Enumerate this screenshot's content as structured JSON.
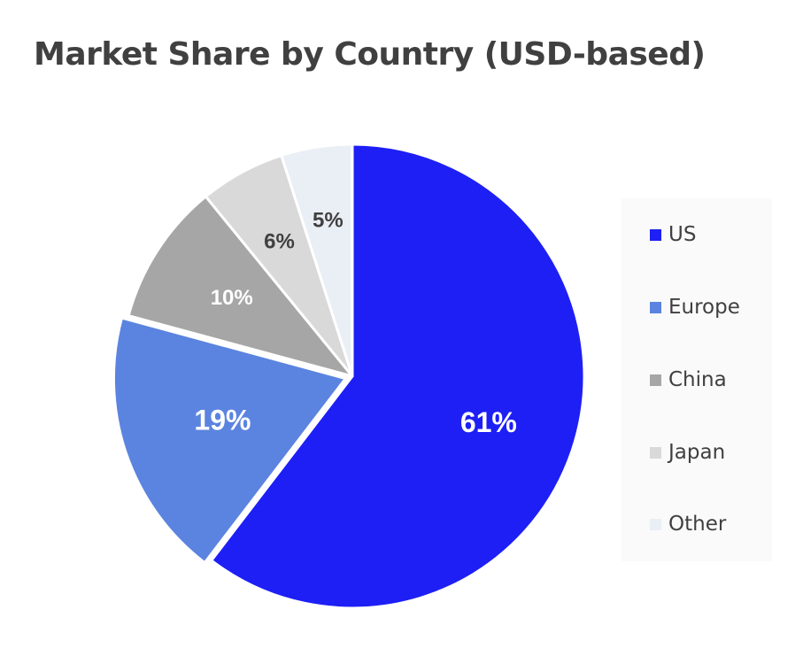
{
  "title": "Market Share by Country (USD-based)",
  "chart_data": {
    "type": "pie",
    "title": "Market Share by Country (USD-based)",
    "categories": [
      "US",
      "Europe",
      "China",
      "Japan",
      "Other"
    ],
    "values": [
      61,
      19,
      10,
      6,
      5
    ],
    "value_labels": [
      "61%",
      "19%",
      "10%",
      "6%",
      "5%"
    ],
    "colors": [
      "#1d1ff5",
      "#5b84e0",
      "#a6a6a6",
      "#d9d9d9",
      "#eaeff5"
    ],
    "label_colors": [
      "#ffffff",
      "#ffffff",
      "#ffffff",
      "#404040",
      "#404040"
    ],
    "start_angle": "12 o'clock",
    "direction": "clockwise",
    "exploded": "Europe",
    "legend": "right"
  }
}
